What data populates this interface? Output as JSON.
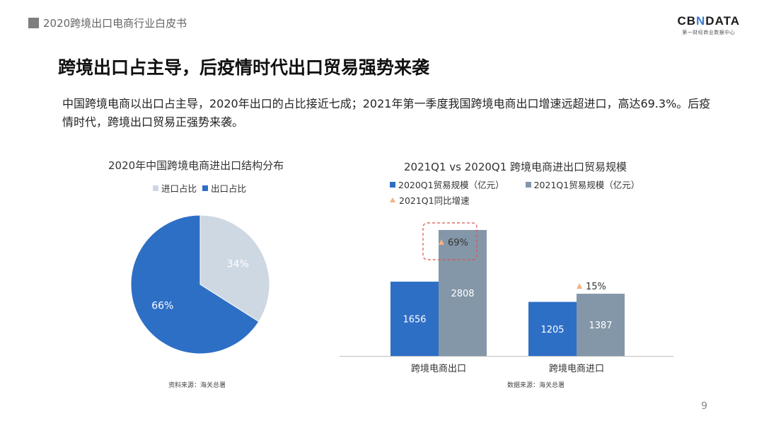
{
  "header": {
    "title": "2020跨境出口电商行业白皮书"
  },
  "logo": {
    "main_left": "CB",
    "main_x": "N",
    "main_right": "DATA",
    "sub": "第一财经商业数据中心"
  },
  "page": {
    "title": "跨境出口占主导，后疫情时代出口贸易强势来袭",
    "intro": "中国跨境电商以出口占主导，2020年出口的占比接近七成；2021年第一季度我国跨境电商出口增速远超进口，高达69.3%。后疫情时代，跨境出口贸易正强势来袭。",
    "page_number": "9"
  },
  "colors": {
    "blue": "#2e6fc6",
    "gray_blue": "#8497a8",
    "light_gray": "#ced8e3",
    "marker": "#f4b183",
    "highlight": "#d9534f"
  },
  "chart_data": [
    {
      "type": "pie",
      "title": "2020年中国跨境电商进出口结构分布",
      "legend": [
        "进口占比",
        "出口占比"
      ],
      "slices": [
        {
          "name": "进口占比",
          "value": 34,
          "label": "34%"
        },
        {
          "name": "出口占比",
          "value": 66,
          "label": "66%"
        }
      ],
      "source": "资料来源：海关总署"
    },
    {
      "type": "bar",
      "title": "2021Q1 vs 2020Q1 跨境电商进出口贸易规模",
      "categories": [
        "跨境电商出口",
        "跨境电商进口"
      ],
      "series": [
        {
          "name": "2020Q1贸易规模（亿元）",
          "values": [
            1656,
            1205
          ],
          "labels": [
            "1656",
            "1205"
          ]
        },
        {
          "name": "2021Q1贸易规模（亿元）",
          "values": [
            2808,
            1387
          ],
          "labels": [
            "2808",
            "1387"
          ]
        }
      ],
      "growth": {
        "name": "2021Q1同比增速",
        "values": [
          69,
          15
        ],
        "labels": [
          "69%",
          "15%"
        ]
      },
      "ylim": [
        0,
        2808
      ],
      "source": "数据来源：海关总署"
    }
  ]
}
